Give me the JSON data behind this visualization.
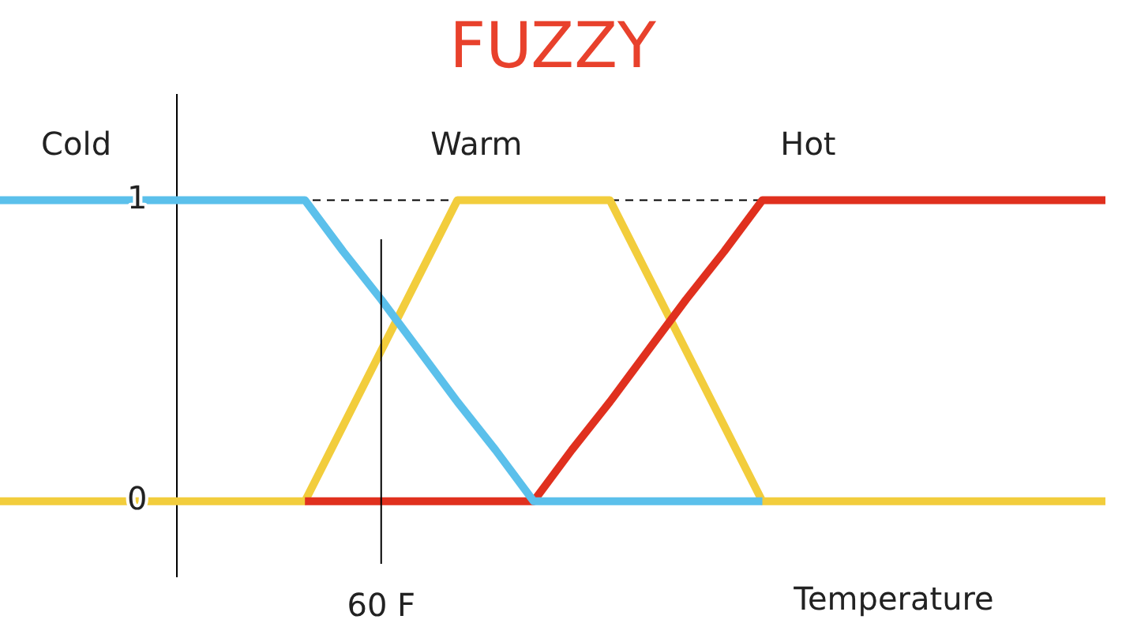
{
  "chart_data": {
    "type": "line",
    "title": "FUZZY",
    "xlabel": "Temperature",
    "categories": [
      null,
      null,
      null,
      null,
      null,
      null,
      null,
      null,
      null,
      null,
      "60 F",
      null,
      null,
      null,
      null,
      null,
      null,
      null,
      null,
      null,
      null,
      null,
      null,
      null,
      null,
      null,
      null,
      null,
      null,
      null
    ],
    "series": [
      {
        "name": "Cold",
        "color": "#5bc0eb",
        "values": [
          1,
          1,
          1,
          1,
          1,
          1,
          1,
          1,
          1,
          0.83,
          0.67,
          0.5,
          0.33,
          0.17,
          0,
          0,
          0,
          0,
          0,
          0,
          0,
          null,
          null,
          null,
          null,
          null,
          null,
          null,
          null,
          null
        ]
      },
      {
        "name": "Hot",
        "color": "#e0301e",
        "values": [
          null,
          null,
          null,
          null,
          null,
          null,
          null,
          null,
          0,
          0,
          0,
          0,
          0,
          0,
          0,
          0.17,
          0.33,
          0.5,
          0.67,
          0.83,
          1,
          1,
          1,
          1,
          1,
          1,
          1,
          1,
          1,
          1
        ]
      },
      {
        "name": "Warm",
        "color": "#f2cd3c",
        "values": [
          0,
          0,
          0,
          0,
          0,
          0,
          0,
          0,
          0,
          0.25,
          0.5,
          0.75,
          1,
          1,
          1,
          1,
          1,
          0.75,
          0.5,
          0.25,
          0,
          0,
          0,
          0,
          0,
          0,
          0,
          0,
          0,
          0
        ]
      }
    ],
    "ylim": [
      -0.25,
      1.35
    ],
    "yticks": [
      0,
      1
    ],
    "ref_lines": [
      {
        "axis": "y",
        "value": 1,
        "line_style": "dashed",
        "color": "#000000"
      },
      {
        "axis": "x",
        "value": "60 F",
        "color": "#000000"
      }
    ],
    "grid": false,
    "legend": false,
    "marker": "none",
    "line_style": "solid"
  }
}
